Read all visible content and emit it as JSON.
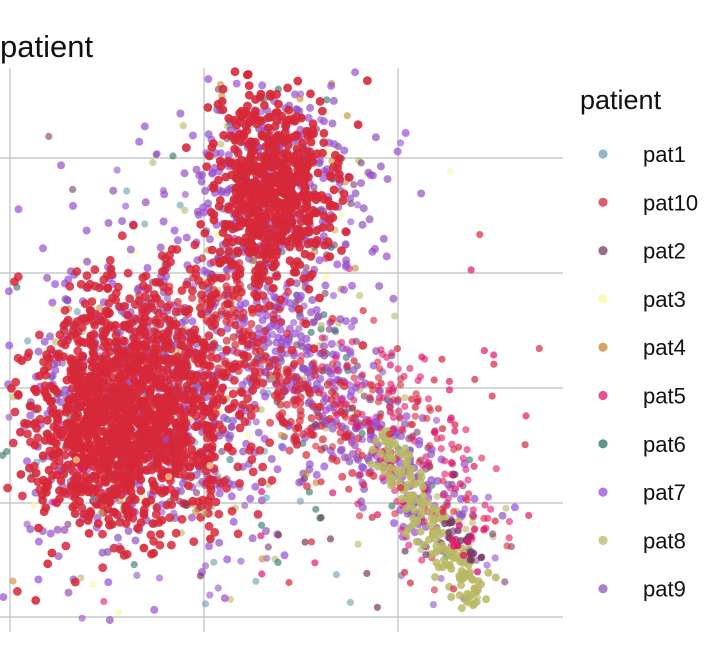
{
  "chart_data": {
    "type": "scatter",
    "title": "patient",
    "xlabel": "",
    "ylabel": "",
    "grid": true,
    "legend_placement": "right",
    "legend_title": "patient",
    "series": [
      {
        "name": "pat1",
        "color": "#6a9fb5"
      },
      {
        "name": "pat10",
        "color": "#d62839"
      },
      {
        "name": "pat2",
        "color": "#7b3b68"
      },
      {
        "name": "pat3",
        "color": "#fbf6a4"
      },
      {
        "name": "pat4",
        "color": "#c58a30"
      },
      {
        "name": "pat5",
        "color": "#e0186f"
      },
      {
        "name": "pat6",
        "color": "#2a6f66"
      },
      {
        "name": "pat7",
        "color": "#9a4dd6"
      },
      {
        "name": "pat8",
        "color": "#b8b865"
      },
      {
        "name": "pat9",
        "color": "#9152bd"
      }
    ]
  }
}
